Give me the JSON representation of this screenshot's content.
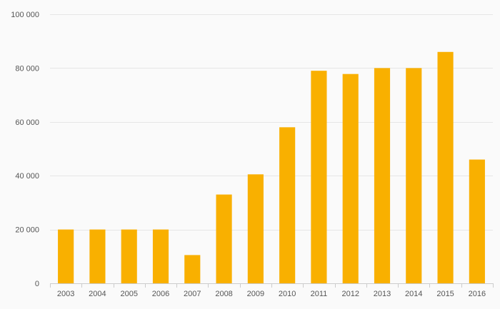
{
  "chart_data": {
    "type": "bar",
    "title": "",
    "xlabel": "",
    "ylabel": "",
    "categories": [
      "2003",
      "2004",
      "2005",
      "2006",
      "2007",
      "2008",
      "2009",
      "2010",
      "2011",
      "2012",
      "2013",
      "2014",
      "2015",
      "2016"
    ],
    "values": [
      20000,
      20000,
      20000,
      20000,
      10500,
      33000,
      40500,
      58000,
      79000,
      77800,
      80000,
      80000,
      86000,
      46000
    ],
    "ylim": [
      0,
      100000
    ],
    "yticks": [
      0,
      20000,
      40000,
      60000,
      80000,
      100000
    ],
    "ytick_labels": [
      "0",
      "20 000",
      "40 000",
      "60 000",
      "80 000",
      "100 000"
    ],
    "grid": true,
    "legend": "none",
    "colors": {
      "bar": "#f9b000",
      "grid": "#e6e6e6",
      "axis": "#cccccc",
      "text": "#555555"
    }
  }
}
